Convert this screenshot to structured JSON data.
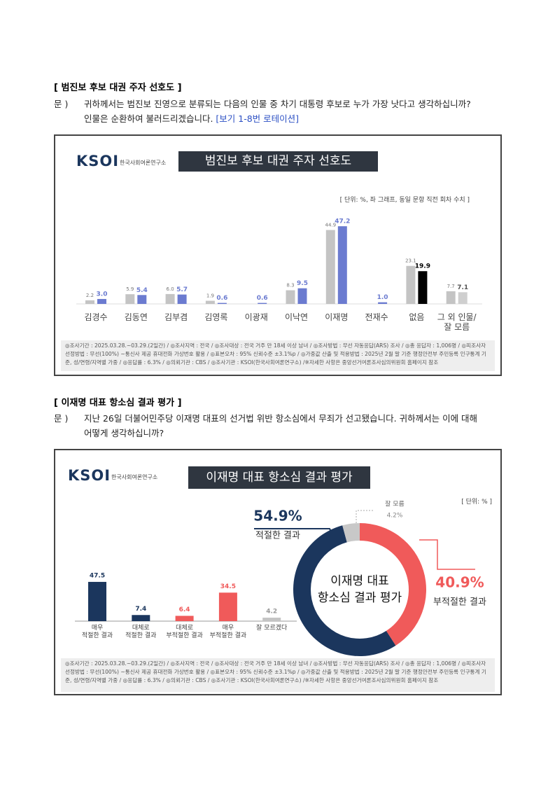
{
  "document": {
    "sections": [
      {
        "heading": "[ 범진보 후보 대권 주자 선호도 ]",
        "question_label": "문 )",
        "question_lines": [
          "귀하께서는 범진보 진영으로 분류되는 다음의 인물 중 차기 대통령 후보로 누가 가장 낫다고 생각하십니까?",
          "인물은 순환하여 불러드리겠습니다."
        ],
        "question_note": "[보기 1-8번 로테이션]",
        "panel": {
          "logo": "KSOI",
          "logo_sub": "한국사회여론연구소",
          "title": "범진보 후보 대권 주자 선호도",
          "unit": "[ 단위: %, 좌 그래프, 동일 문항 직전 회차 수치 ]",
          "footnote": "◎조사기간 : 2025.03.28.~03.29.(2일간) / ◎조사지역 : 전국 / ◎조사대상 : 전국 거주 만 18세 이상 남녀 / ◎조사방법 : 무선 자동응답(ARS) 조사 / ◎총 응답자 : 1,006명 / ◎피조사자선정방법 : 무선(100%) ~통신사 제공 휴대전화 가상번호 활용 / ◎표본오차 : 95% 신뢰수준 ±3.1%p / ◎가중값 산출 및 적용방법 : 2025년 2월 말 기준 행정안전부 주민등록 인구통계 기준, 성/연령/지역별 가중 / ◎응답률 : 6.3% / ◎의뢰기관 : CBS / ◎조사기관 : KSOI(한국사회여론연구소) /※자세한 사항은 중앙선거여론조사심의위원회 홈페이지 참조"
        }
      },
      {
        "heading": "[ 이재명 대표 항소심 결과 평가 ]",
        "question_label": "문 )",
        "question_lines": [
          "지난 26일 더불어민주당 이재명 대표의 선거법 위반 항소심에서 무죄가 선고됐습니다. 귀하께서는 이에 대해",
          "어떻게 생각하십니까?"
        ],
        "panel": {
          "logo": "KSOI",
          "logo_sub": "한국사회여론연구소",
          "title": "이재명 대표 항소심 결과 평가",
          "unit": "[ 단위: % ]",
          "footnote": "◎조사기간 : 2025.03.28.~03.29.(2일간) / ◎조사지역 : 전국 / ◎조사대상 : 전국 거주 만 18세 이상 남녀 / ◎조사방법 : 무선 자동응답(ARS) 조사 / ◎총 응답자 : 1,006명 / ◎피조사자선정방법 : 무선(100%) ~통신사 제공 휴대전화 가상번호 활용 / ◎표본오차 : 95% 신뢰수준 ±3.1%p / ◎가중값 산출 및 적용방법 : 2025년 2월 말 기준 행정안전부 주민등록 인구통계 기준, 성/연령/지역별 가중 / ◎응답률 : 6.3% / ◎의뢰기관 : CBS / ◎조사기관 : KSOI(한국사회여론연구소) /※자세한 사항은 중앙선거여론조사심의위원회 홈페이지 참조"
        }
      }
    ]
  },
  "chart_data": [
    {
      "type": "bar",
      "categories": [
        "김경수",
        "김동연",
        "김부겸",
        "김영록",
        "이광재",
        "이낙연",
        "이재명",
        "전재수",
        "없음",
        "그 외 인물/\n잘 모름"
      ],
      "series": [
        {
          "color": "#c4c4c4",
          "values": [
            2.2,
            5.9,
            6.0,
            1.9,
            null,
            8.3,
            44.9,
            null,
            23.1,
            7.7
          ],
          "value_labels": [
            "2.2",
            "5.9",
            "6.0",
            "1.9",
            null,
            "8.3",
            "44.9",
            null,
            "23.1",
            "7.7"
          ]
        },
        {
          "color": "#6b7bd0",
          "values": [
            3.0,
            5.4,
            5.7,
            0.6,
            0.6,
            9.5,
            47.2,
            1.0,
            19.9,
            7.1
          ],
          "value_labels": [
            "3.0",
            "5.4",
            "5.7",
            "0.6",
            "0.6",
            "9.5",
            "47.2",
            "1.0",
            "19.9",
            "7.1"
          ],
          "point_colors": [
            "#6b7bd0",
            "#6b7bd0",
            "#6b7bd0",
            "#6b7bd0",
            "#6b7bd0",
            "#6b7bd0",
            "#6b7bd0",
            "#6b7bd0",
            "#000000",
            "#cfcfcf"
          ]
        }
      ]
    },
    {
      "type": "bar",
      "categories": [
        "매우\n적절한 결과",
        "대체로\n적절한 결과",
        "대체로\n부적절한 결과",
        "매우\n부적절한 결과",
        "잘 모르겠다"
      ],
      "values": [
        47.5,
        7.4,
        6.4,
        34.5,
        4.2
      ],
      "colors": [
        "#1b365d",
        "#1b365d",
        "#f05a5a",
        "#f05a5a",
        "#c4c4c4"
      ]
    },
    {
      "type": "pie",
      "donut": true,
      "center_label": "이재명 대표\n항소심 결과 평가",
      "categories": [
        "부적절한 결과",
        "적절한 결과",
        "잘 모름"
      ],
      "values": [
        40.9,
        54.9,
        4.2
      ],
      "value_labels": [
        "40.9%",
        "54.9%",
        "4.2%"
      ],
      "colors": [
        "#f05a5a",
        "#1b365d",
        "#c8c8c8"
      ]
    }
  ]
}
